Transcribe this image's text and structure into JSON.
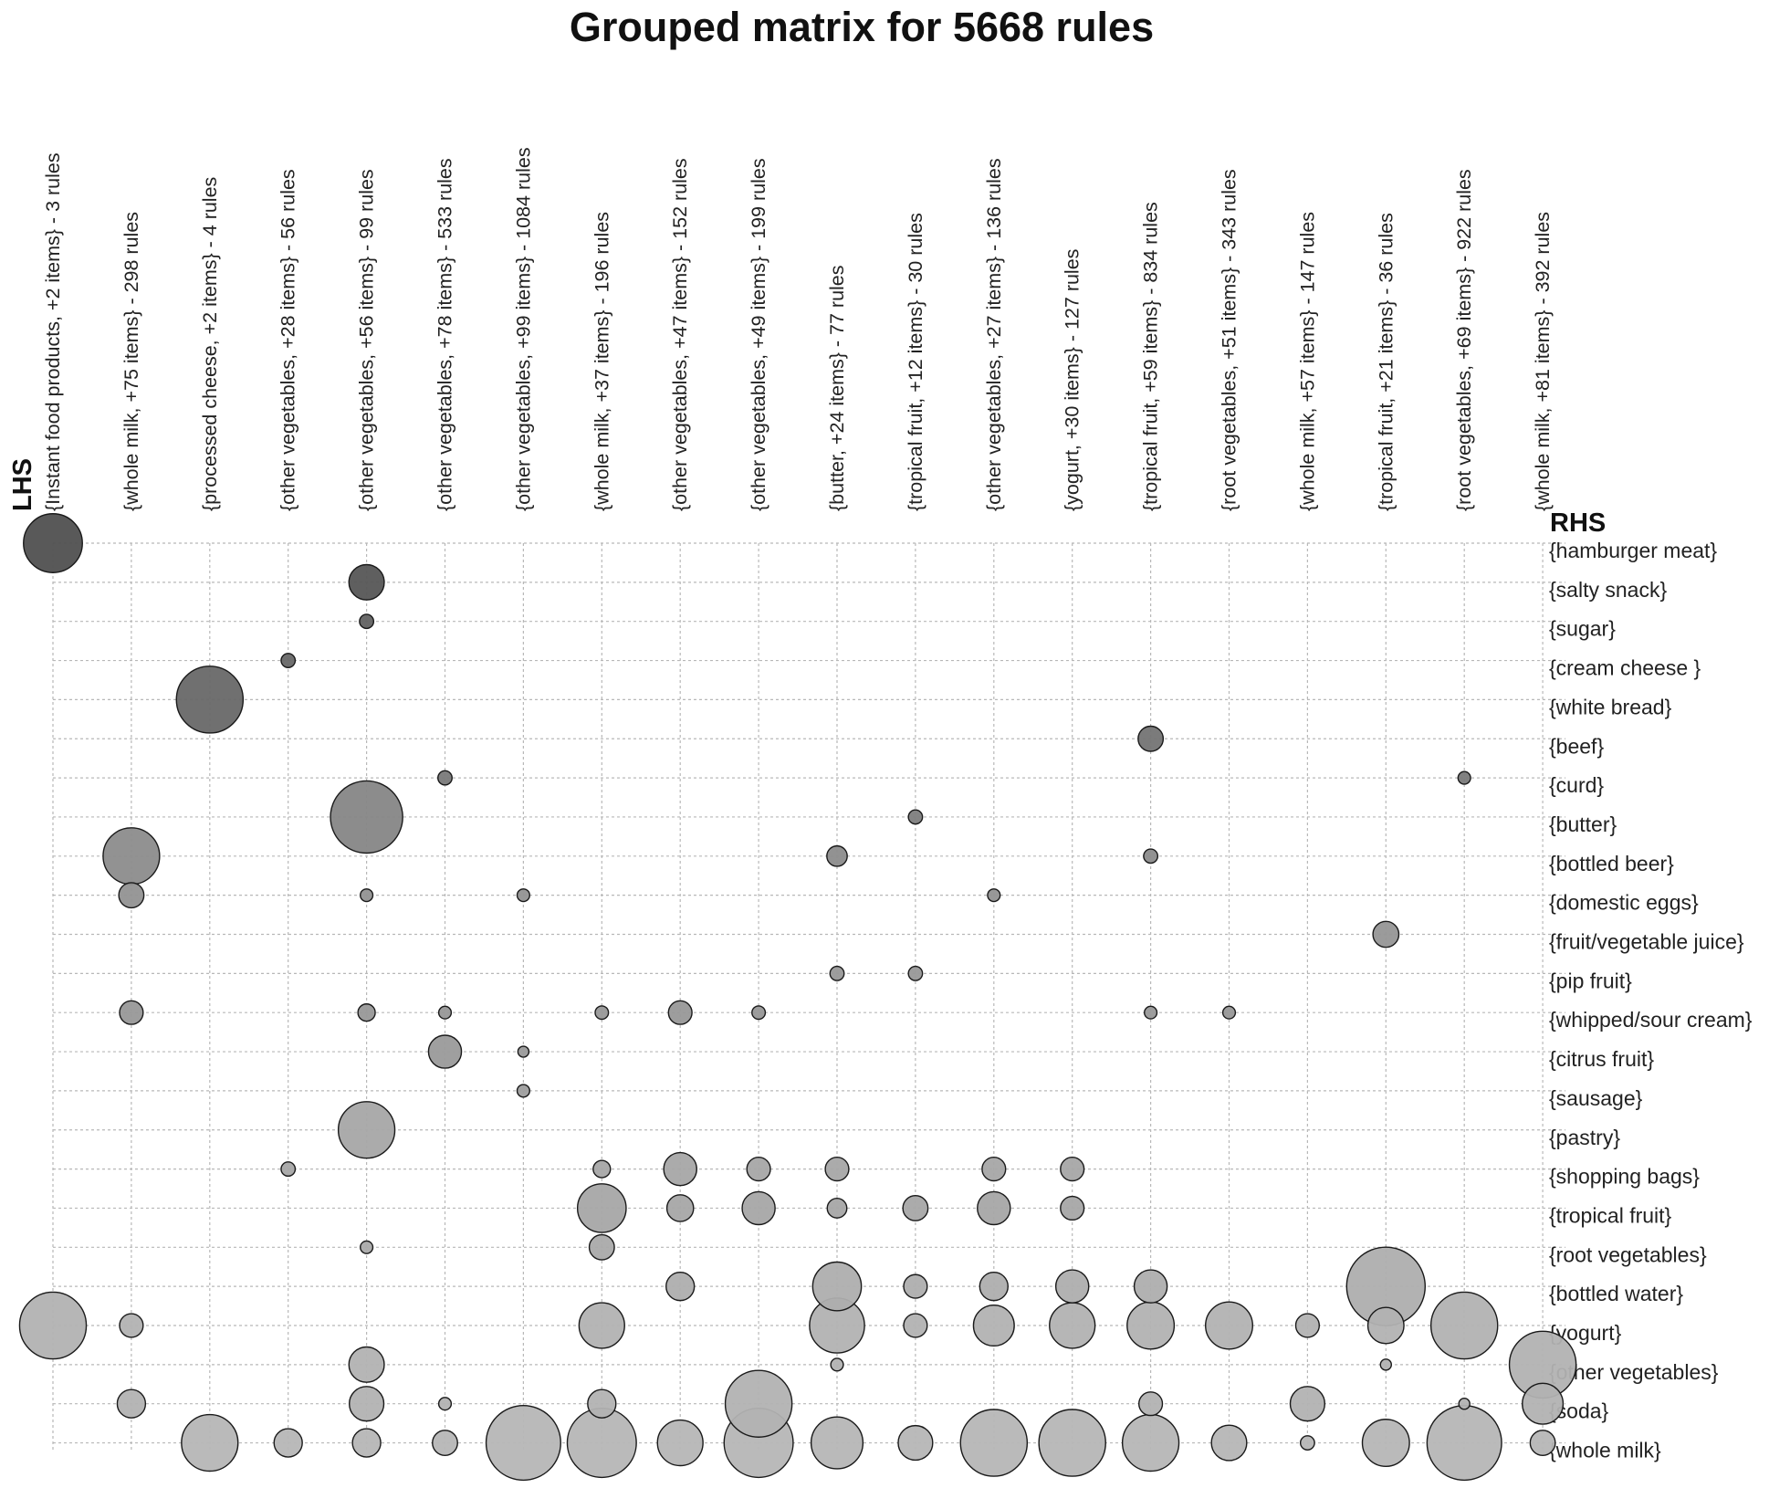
{
  "chart_data": {
    "type": "scatter",
    "subtype": "grouped-matrix-bubble",
    "title": "Grouped matrix for 5668 rules",
    "xlabel": "LHS",
    "ylabel": "RHS",
    "lhs_groups": [
      "{Instant food products, +2 items} - 3 rules",
      "{whole milk, +75 items} - 298 rules",
      "{processed cheese, +2 items} - 4 rules",
      "{other vegetables, +28 items} - 56 rules",
      "{other vegetables, +56 items} - 99 rules",
      "{other vegetables, +78 items} - 533 rules",
      "{other vegetables, +99 items} - 1084 rules",
      "{whole milk, +37 items} - 196 rules",
      "{other vegetables, +47 items} - 152 rules",
      "{other vegetables, +49 items} - 199 rules",
      "{butter, +24 items} - 77 rules",
      "{tropical fruit, +12 items} - 30 rules",
      "{other vegetables, +27 items} - 136 rules",
      "{yogurt, +30 items} - 127 rules",
      "{tropical fruit, +59 items} - 834 rules",
      "{root vegetables, +51 items} - 343 rules",
      "{whole milk, +57 items} - 147 rules",
      "{tropical fruit, +21 items} - 36 rules",
      "{root vegetables, +69 items} - 922 rules",
      "{whole milk, +81 items} - 392 rules"
    ],
    "rhs_items": [
      "{hamburger meat}",
      "{salty snack}",
      "{sugar}",
      "{cream cheese }",
      "{white bread}",
      "{beef}",
      "{curd}",
      "{butter}",
      "{bottled beer}",
      "{domestic eggs}",
      "{fruit/vegetable juice}",
      "{pip fruit}",
      "{whipped/sour cream}",
      "{citrus fruit}",
      "{sausage}",
      "{pastry}",
      "{shopping bags}",
      "{tropical fruit}",
      "{root vegetables}",
      "{bottled water}",
      "{yogurt}",
      "{other vegetables}",
      "{soda}",
      "{whole milk}"
    ],
    "encoding": {
      "size": "support",
      "color": "lift (darker = higher)"
    },
    "points": [
      {
        "lhs": 0,
        "rhs": 0,
        "size": 0.75,
        "shade": 0.0
      },
      {
        "lhs": 4,
        "rhs": 1,
        "size": 0.45,
        "shade": 0.05
      },
      {
        "lhs": 4,
        "rhs": 2,
        "size": 0.18,
        "shade": 0.15
      },
      {
        "lhs": 3,
        "rhs": 3,
        "size": 0.18,
        "shade": 0.2
      },
      {
        "lhs": 2,
        "rhs": 4,
        "size": 0.85,
        "shade": 0.2
      },
      {
        "lhs": 14,
        "rhs": 5,
        "size": 0.32,
        "shade": 0.3
      },
      {
        "lhs": 5,
        "rhs": 6,
        "size": 0.18,
        "shade": 0.35
      },
      {
        "lhs": 18,
        "rhs": 6,
        "size": 0.16,
        "shade": 0.35
      },
      {
        "lhs": 11,
        "rhs": 7,
        "size": 0.18,
        "shade": 0.38
      },
      {
        "lhs": 4,
        "rhs": 7,
        "size": 0.92,
        "shade": 0.45
      },
      {
        "lhs": 1,
        "rhs": 8,
        "size": 0.72,
        "shade": 0.5
      },
      {
        "lhs": 10,
        "rhs": 8,
        "size": 0.26,
        "shade": 0.5
      },
      {
        "lhs": 14,
        "rhs": 8,
        "size": 0.18,
        "shade": 0.5
      },
      {
        "lhs": 1,
        "rhs": 9,
        "size": 0.32,
        "shade": 0.55
      },
      {
        "lhs": 4,
        "rhs": 9,
        "size": 0.16,
        "shade": 0.55
      },
      {
        "lhs": 6,
        "rhs": 9,
        "size": 0.16,
        "shade": 0.55
      },
      {
        "lhs": 12,
        "rhs": 9,
        "size": 0.16,
        "shade": 0.55
      },
      {
        "lhs": 17,
        "rhs": 10,
        "size": 0.33,
        "shade": 0.58
      },
      {
        "lhs": 10,
        "rhs": 11,
        "size": 0.18,
        "shade": 0.6
      },
      {
        "lhs": 11,
        "rhs": 11,
        "size": 0.18,
        "shade": 0.6
      },
      {
        "lhs": 1,
        "rhs": 12,
        "size": 0.3,
        "shade": 0.6
      },
      {
        "lhs": 4,
        "rhs": 12,
        "size": 0.22,
        "shade": 0.6
      },
      {
        "lhs": 5,
        "rhs": 12,
        "size": 0.16,
        "shade": 0.6
      },
      {
        "lhs": 7,
        "rhs": 12,
        "size": 0.17,
        "shade": 0.6
      },
      {
        "lhs": 8,
        "rhs": 12,
        "size": 0.3,
        "shade": 0.6
      },
      {
        "lhs": 9,
        "rhs": 12,
        "size": 0.17,
        "shade": 0.6
      },
      {
        "lhs": 14,
        "rhs": 12,
        "size": 0.16,
        "shade": 0.6
      },
      {
        "lhs": 15,
        "rhs": 12,
        "size": 0.16,
        "shade": 0.6
      },
      {
        "lhs": 5,
        "rhs": 13,
        "size": 0.42,
        "shade": 0.62
      },
      {
        "lhs": 6,
        "rhs": 13,
        "size": 0.14,
        "shade": 0.62
      },
      {
        "lhs": 6,
        "rhs": 14,
        "size": 0.16,
        "shade": 0.65
      },
      {
        "lhs": 4,
        "rhs": 15,
        "size": 0.72,
        "shade": 0.72
      },
      {
        "lhs": 3,
        "rhs": 16,
        "size": 0.18,
        "shade": 0.72
      },
      {
        "lhs": 7,
        "rhs": 16,
        "size": 0.22,
        "shade": 0.72
      },
      {
        "lhs": 8,
        "rhs": 16,
        "size": 0.42,
        "shade": 0.72
      },
      {
        "lhs": 9,
        "rhs": 16,
        "size": 0.3,
        "shade": 0.72
      },
      {
        "lhs": 10,
        "rhs": 16,
        "size": 0.3,
        "shade": 0.72
      },
      {
        "lhs": 12,
        "rhs": 16,
        "size": 0.3,
        "shade": 0.72
      },
      {
        "lhs": 13,
        "rhs": 16,
        "size": 0.3,
        "shade": 0.72
      },
      {
        "lhs": 7,
        "rhs": 17,
        "size": 0.62,
        "shade": 0.72
      },
      {
        "lhs": 8,
        "rhs": 17,
        "size": 0.34,
        "shade": 0.72
      },
      {
        "lhs": 9,
        "rhs": 17,
        "size": 0.42,
        "shade": 0.72
      },
      {
        "lhs": 10,
        "rhs": 17,
        "size": 0.25,
        "shade": 0.72
      },
      {
        "lhs": 11,
        "rhs": 17,
        "size": 0.32,
        "shade": 0.72
      },
      {
        "lhs": 12,
        "rhs": 17,
        "size": 0.42,
        "shade": 0.72
      },
      {
        "lhs": 13,
        "rhs": 17,
        "size": 0.3,
        "shade": 0.72
      },
      {
        "lhs": 4,
        "rhs": 18,
        "size": 0.16,
        "shade": 0.75
      },
      {
        "lhs": 7,
        "rhs": 18,
        "size": 0.32,
        "shade": 0.75
      },
      {
        "lhs": 8,
        "rhs": 19,
        "size": 0.36,
        "shade": 0.78
      },
      {
        "lhs": 10,
        "rhs": 19,
        "size": 0.62,
        "shade": 0.78
      },
      {
        "lhs": 11,
        "rhs": 19,
        "size": 0.3,
        "shade": 0.78
      },
      {
        "lhs": 12,
        "rhs": 19,
        "size": 0.36,
        "shade": 0.78
      },
      {
        "lhs": 13,
        "rhs": 19,
        "size": 0.42,
        "shade": 0.78
      },
      {
        "lhs": 14,
        "rhs": 19,
        "size": 0.42,
        "shade": 0.78
      },
      {
        "lhs": 17,
        "rhs": 19,
        "size": 1.0,
        "shade": 0.78
      },
      {
        "lhs": 0,
        "rhs": 20,
        "size": 0.85,
        "shade": 0.82
      },
      {
        "lhs": 1,
        "rhs": 20,
        "size": 0.3,
        "shade": 0.82
      },
      {
        "lhs": 7,
        "rhs": 20,
        "size": 0.58,
        "shade": 0.82
      },
      {
        "lhs": 10,
        "rhs": 20,
        "size": 0.7,
        "shade": 0.82
      },
      {
        "lhs": 11,
        "rhs": 20,
        "size": 0.3,
        "shade": 0.82
      },
      {
        "lhs": 12,
        "rhs": 20,
        "size": 0.52,
        "shade": 0.82
      },
      {
        "lhs": 13,
        "rhs": 20,
        "size": 0.58,
        "shade": 0.82
      },
      {
        "lhs": 14,
        "rhs": 20,
        "size": 0.6,
        "shade": 0.82
      },
      {
        "lhs": 15,
        "rhs": 20,
        "size": 0.6,
        "shade": 0.82
      },
      {
        "lhs": 16,
        "rhs": 20,
        "size": 0.3,
        "shade": 0.82
      },
      {
        "lhs": 17,
        "rhs": 20,
        "size": 0.46,
        "shade": 0.82
      },
      {
        "lhs": 18,
        "rhs": 20,
        "size": 0.85,
        "shade": 0.82
      },
      {
        "lhs": 4,
        "rhs": 21,
        "size": 0.45,
        "shade": 0.82
      },
      {
        "lhs": 10,
        "rhs": 21,
        "size": 0.16,
        "shade": 0.82
      },
      {
        "lhs": 17,
        "rhs": 21,
        "size": 0.14,
        "shade": 0.82
      },
      {
        "lhs": 19,
        "rhs": 21,
        "size": 0.85,
        "shade": 0.82
      },
      {
        "lhs": 1,
        "rhs": 22,
        "size": 0.36,
        "shade": 0.82
      },
      {
        "lhs": 4,
        "rhs": 22,
        "size": 0.44,
        "shade": 0.82
      },
      {
        "lhs": 5,
        "rhs": 22,
        "size": 0.16,
        "shade": 0.82
      },
      {
        "lhs": 7,
        "rhs": 22,
        "size": 0.36,
        "shade": 0.82
      },
      {
        "lhs": 9,
        "rhs": 22,
        "size": 0.85,
        "shade": 0.82
      },
      {
        "lhs": 14,
        "rhs": 22,
        "size": 0.3,
        "shade": 0.82
      },
      {
        "lhs": 16,
        "rhs": 22,
        "size": 0.44,
        "shade": 0.82
      },
      {
        "lhs": 18,
        "rhs": 22,
        "size": 0.14,
        "shade": 0.82
      },
      {
        "lhs": 19,
        "rhs": 22,
        "size": 0.52,
        "shade": 0.82
      },
      {
        "lhs": 2,
        "rhs": 23,
        "size": 0.72,
        "shade": 0.85
      },
      {
        "lhs": 3,
        "rhs": 23,
        "size": 0.36,
        "shade": 0.85
      },
      {
        "lhs": 4,
        "rhs": 23,
        "size": 0.36,
        "shade": 0.85
      },
      {
        "lhs": 5,
        "rhs": 23,
        "size": 0.32,
        "shade": 0.85
      },
      {
        "lhs": 6,
        "rhs": 23,
        "size": 0.95,
        "shade": 0.85
      },
      {
        "lhs": 7,
        "rhs": 23,
        "size": 0.88,
        "shade": 0.85
      },
      {
        "lhs": 8,
        "rhs": 23,
        "size": 0.58,
        "shade": 0.85
      },
      {
        "lhs": 9,
        "rhs": 23,
        "size": 0.88,
        "shade": 0.85
      },
      {
        "lhs": 10,
        "rhs": 23,
        "size": 0.66,
        "shade": 0.85
      },
      {
        "lhs": 11,
        "rhs": 23,
        "size": 0.44,
        "shade": 0.85
      },
      {
        "lhs": 12,
        "rhs": 23,
        "size": 0.85,
        "shade": 0.85
      },
      {
        "lhs": 13,
        "rhs": 23,
        "size": 0.85,
        "shade": 0.85
      },
      {
        "lhs": 14,
        "rhs": 23,
        "size": 0.72,
        "shade": 0.85
      },
      {
        "lhs": 15,
        "rhs": 23,
        "size": 0.45,
        "shade": 0.85
      },
      {
        "lhs": 16,
        "rhs": 23,
        "size": 0.18,
        "shade": 0.85
      },
      {
        "lhs": 17,
        "rhs": 23,
        "size": 0.6,
        "shade": 0.85
      },
      {
        "lhs": 18,
        "rhs": 23,
        "size": 0.95,
        "shade": 0.85
      },
      {
        "lhs": 19,
        "rhs": 23,
        "size": 0.32,
        "shade": 0.85
      }
    ],
    "grid": true
  }
}
